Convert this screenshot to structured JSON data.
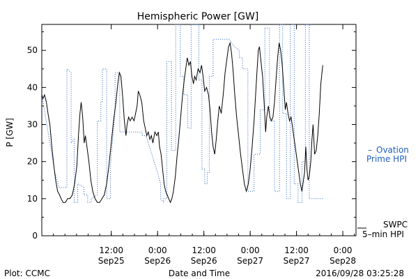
{
  "chart_data": {
    "type": "line",
    "title": "Hemispheric Power [GW]",
    "xlabel": "Date and Time",
    "ylabel": "P [GW]",
    "ylim": [
      0,
      57
    ],
    "xlim": [
      "2016-09-24 18:00",
      "2016-09-28 03:25"
    ],
    "y_ticks": [
      0,
      10,
      20,
      30,
      40,
      50
    ],
    "x_ticks": [
      {
        "time": "12:00",
        "date": "Sep25",
        "x": "2016-09-25 12:00"
      },
      {
        "time": "0:00",
        "date": "Sep26",
        "x": "2016-09-26 00:00"
      },
      {
        "time": "12:00",
        "date": "Sep26",
        "x": "2016-09-26 12:00"
      },
      {
        "time": "0:00",
        "date": "Sep27",
        "x": "2016-09-27 00:00"
      },
      {
        "time": "12:00",
        "date": "Sep27",
        "x": "2016-09-27 12:00"
      },
      {
        "time": "0:00",
        "date": "Sep28",
        "x": "2016-09-28 00:00"
      }
    ],
    "grid": false,
    "legend_placement": "right",
    "series": [
      {
        "name": "SWPC 5-min HPI",
        "style": "solid",
        "color": "#000000",
        "points": [
          [
            0,
            38
          ],
          [
            0.3,
            37
          ],
          [
            0.7,
            38
          ],
          [
            1.2,
            36
          ],
          [
            1.6,
            33
          ],
          [
            2.1,
            30
          ],
          [
            2.6,
            24
          ],
          [
            3.1,
            19
          ],
          [
            3.6,
            15
          ],
          [
            4.1,
            12
          ],
          [
            4.6,
            11
          ],
          [
            5.0,
            10
          ],
          [
            5.5,
            9
          ],
          [
            6.1,
            9
          ],
          [
            6.7,
            10
          ],
          [
            7.3,
            10
          ],
          [
            7.9,
            11
          ],
          [
            8.5,
            14
          ],
          [
            9.1,
            19
          ],
          [
            9.5,
            27
          ],
          [
            9.9,
            33
          ],
          [
            10.2,
            36
          ],
          [
            10.6,
            32
          ],
          [
            11.0,
            25
          ],
          [
            11.3,
            27
          ],
          [
            11.7,
            24
          ],
          [
            12.2,
            20
          ],
          [
            12.7,
            15
          ],
          [
            13.2,
            12
          ],
          [
            13.8,
            10
          ],
          [
            14.4,
            9
          ],
          [
            15.0,
            9
          ],
          [
            15.6,
            10
          ],
          [
            16.2,
            11
          ],
          [
            16.8,
            14
          ],
          [
            17.4,
            19
          ],
          [
            18.0,
            25
          ],
          [
            18.6,
            31
          ],
          [
            19.2,
            36
          ],
          [
            19.7,
            41
          ],
          [
            20.1,
            44
          ],
          [
            20.5,
            43
          ],
          [
            21.0,
            37
          ],
          [
            21.4,
            31
          ],
          [
            21.8,
            27
          ],
          [
            22.1,
            30
          ],
          [
            22.5,
            32
          ],
          [
            22.9,
            31
          ],
          [
            23.4,
            32
          ],
          [
            23.9,
            31
          ],
          [
            24.3,
            33
          ],
          [
            24.7,
            35
          ],
          [
            25.0,
            39
          ],
          [
            25.4,
            38
          ],
          [
            25.9,
            36
          ],
          [
            26.4,
            31
          ],
          [
            26.8,
            29
          ],
          [
            27.2,
            27
          ],
          [
            27.6,
            28
          ],
          [
            28.0,
            26
          ],
          [
            28.4,
            27
          ],
          [
            28.8,
            25
          ],
          [
            29.3,
            28
          ],
          [
            29.8,
            27
          ],
          [
            30.2,
            28
          ],
          [
            30.5,
            24
          ],
          [
            30.9,
            22
          ],
          [
            31.3,
            18
          ],
          [
            31.7,
            14
          ],
          [
            32.1,
            12
          ],
          [
            32.5,
            11
          ],
          [
            32.9,
            10
          ],
          [
            33.3,
            9
          ],
          [
            33.7,
            10
          ],
          [
            34.1,
            12
          ],
          [
            34.6,
            16
          ],
          [
            35.0,
            21
          ],
          [
            35.5,
            26
          ],
          [
            35.9,
            31
          ],
          [
            36.4,
            37
          ],
          [
            36.9,
            42
          ],
          [
            37.3,
            45
          ],
          [
            37.7,
            48
          ],
          [
            38.1,
            46
          ],
          [
            38.5,
            47
          ],
          [
            38.9,
            43
          ],
          [
            39.3,
            41
          ],
          [
            39.6,
            43
          ],
          [
            40.0,
            42
          ],
          [
            40.5,
            45
          ],
          [
            41.0,
            44
          ],
          [
            41.4,
            46
          ],
          [
            41.8,
            43
          ],
          [
            42.2,
            39
          ],
          [
            42.7,
            40
          ],
          [
            43.2,
            38
          ],
          [
            43.6,
            34
          ],
          [
            44.0,
            28
          ],
          [
            44.4,
            24
          ],
          [
            44.8,
            22
          ],
          [
            45.2,
            26
          ],
          [
            45.6,
            31
          ],
          [
            46.0,
            35
          ],
          [
            46.5,
            33
          ],
          [
            47.0,
            38
          ],
          [
            47.5,
            44
          ],
          [
            48.0,
            48
          ],
          [
            48.4,
            51
          ],
          [
            48.8,
            52
          ],
          [
            49.2,
            49
          ],
          [
            49.6,
            44
          ],
          [
            50.0,
            38
          ],
          [
            50.5,
            32
          ],
          [
            51.0,
            27
          ],
          [
            51.5,
            22
          ],
          [
            52.0,
            18
          ],
          [
            52.5,
            14
          ],
          [
            53.0,
            12
          ],
          [
            53.5,
            14
          ],
          [
            54.0,
            18
          ],
          [
            54.5,
            24
          ],
          [
            55.0,
            31
          ],
          [
            55.4,
            38
          ],
          [
            55.8,
            45
          ],
          [
            56.1,
            50
          ],
          [
            56.4,
            51
          ],
          [
            56.8,
            47
          ],
          [
            57.2,
            43
          ],
          [
            57.6,
            36
          ],
          [
            58.0,
            28
          ],
          [
            58.3,
            32
          ],
          [
            58.7,
            35
          ],
          [
            59.1,
            32
          ],
          [
            59.5,
            31
          ],
          [
            59.9,
            32
          ],
          [
            60.3,
            36
          ],
          [
            60.7,
            42
          ],
          [
            61.1,
            48
          ],
          [
            61.5,
            52
          ],
          [
            61.9,
            50
          ],
          [
            62.3,
            46
          ],
          [
            62.7,
            40
          ],
          [
            63.1,
            34
          ],
          [
            63.4,
            36
          ],
          [
            63.8,
            33
          ],
          [
            64.2,
            31
          ],
          [
            64.6,
            32
          ],
          [
            65.0,
            29
          ],
          [
            65.4,
            26
          ],
          [
            65.8,
            23
          ],
          [
            66.2,
            20
          ],
          [
            66.6,
            17
          ],
          [
            67.0,
            14
          ],
          [
            67.4,
            12
          ],
          [
            67.8,
            15
          ],
          [
            68.1,
            17
          ],
          [
            68.4,
            24
          ],
          [
            68.7,
            18
          ],
          [
            69.0,
            15
          ],
          [
            69.3,
            16
          ],
          [
            69.7,
            20
          ],
          [
            70.0,
            26
          ],
          [
            70.3,
            30
          ],
          [
            70.7,
            22
          ],
          [
            71.1,
            23
          ],
          [
            71.5,
            27
          ],
          [
            71.9,
            33
          ],
          [
            72.3,
            41
          ],
          [
            72.8,
            46
          ]
        ]
      },
      {
        "name": "Ovation Prime HPI",
        "style": "dotted",
        "color": "#1f5fbf",
        "points": [
          [
            0,
            38
          ],
          [
            3.4,
            17
          ],
          [
            4.5,
            13
          ],
          [
            6.5,
            13
          ],
          [
            6.5,
            45
          ],
          [
            7.6,
            44
          ],
          [
            7.6,
            25
          ],
          [
            8.4,
            26
          ],
          [
            8.4,
            9
          ],
          [
            9.3,
            9
          ],
          [
            9.3,
            14
          ],
          [
            10.9,
            13
          ],
          [
            10.9,
            11
          ],
          [
            11.9,
            11
          ],
          [
            11.9,
            9
          ],
          [
            12.8,
            9
          ],
          [
            12.8,
            10
          ],
          [
            14.4,
            11
          ],
          [
            14.4,
            31
          ],
          [
            15.3,
            31
          ],
          [
            15.3,
            36
          ],
          [
            15.7,
            36
          ],
          [
            15.7,
            45
          ],
          [
            16.8,
            45
          ],
          [
            16.8,
            10
          ],
          [
            17.8,
            10
          ],
          [
            17.8,
            19
          ],
          [
            19.0,
            34
          ],
          [
            19.0,
            44
          ],
          [
            20.2,
            44
          ],
          [
            20.2,
            28
          ],
          [
            22.0,
            28
          ],
          [
            26.0,
            28
          ],
          [
            26.0,
            27
          ],
          [
            27.0,
            27
          ],
          [
            30.0,
            17
          ],
          [
            30.8,
            14
          ],
          [
            30.8,
            10
          ],
          [
            31.6,
            9
          ],
          [
            31.6,
            10
          ],
          [
            32.4,
            10
          ],
          [
            32.4,
            47
          ],
          [
            33.6,
            47
          ],
          [
            33.6,
            23
          ],
          [
            34.7,
            23
          ],
          [
            34.7,
            57
          ],
          [
            35.9,
            57
          ],
          [
            35.9,
            43
          ],
          [
            36.8,
            43
          ],
          [
            36.8,
            38
          ],
          [
            37.8,
            38
          ],
          [
            37.8,
            29
          ],
          [
            38.7,
            29
          ],
          [
            38.7,
            57
          ],
          [
            40.7,
            57
          ],
          [
            40.7,
            42
          ],
          [
            41.5,
            42
          ],
          [
            41.5,
            18
          ],
          [
            42.2,
            18
          ],
          [
            42.2,
            14
          ],
          [
            42.9,
            14
          ],
          [
            42.9,
            17
          ],
          [
            43.4,
            17
          ],
          [
            43.4,
            43
          ],
          [
            44.4,
            43
          ],
          [
            44.4,
            53
          ],
          [
            48.5,
            53
          ],
          [
            49.9,
            51
          ],
          [
            51.2,
            50
          ],
          [
            51.2,
            48
          ],
          [
            52.0,
            48
          ],
          [
            52.0,
            45
          ],
          [
            53.4,
            45
          ],
          [
            53.4,
            12
          ],
          [
            55.0,
            12
          ],
          [
            55.0,
            22
          ],
          [
            56.6,
            22
          ],
          [
            56.6,
            34
          ],
          [
            57.8,
            34
          ],
          [
            57.8,
            56
          ],
          [
            59.0,
            56
          ],
          [
            59.0,
            31
          ],
          [
            60.3,
            31
          ],
          [
            60.3,
            12
          ],
          [
            61.6,
            12
          ],
          [
            61.6,
            57
          ],
          [
            62.4,
            57
          ],
          [
            62.4,
            33
          ],
          [
            63.4,
            33
          ],
          [
            63.4,
            10
          ],
          [
            64.4,
            10
          ],
          [
            64.4,
            57
          ],
          [
            65.4,
            57
          ],
          [
            65.4,
            14
          ],
          [
            66.4,
            14
          ],
          [
            66.4,
            9
          ],
          [
            67.4,
            9
          ],
          [
            67.4,
            20
          ],
          [
            68.3,
            20
          ],
          [
            68.3,
            57
          ],
          [
            69.3,
            57
          ],
          [
            69.3,
            10
          ],
          [
            72.8,
            10
          ]
        ]
      }
    ]
  },
  "legend": {
    "ovation_dash": "–",
    "ovation_label_1": "Ovation",
    "ovation_label_2": "Prime HPI",
    "swpc_label_1": "SWPC",
    "swpc_label_2": "5–min HPI"
  },
  "footer": {
    "left": "Plot: CCMC",
    "center": "Date and Time",
    "right": "2016/09/28 03:25:28"
  }
}
